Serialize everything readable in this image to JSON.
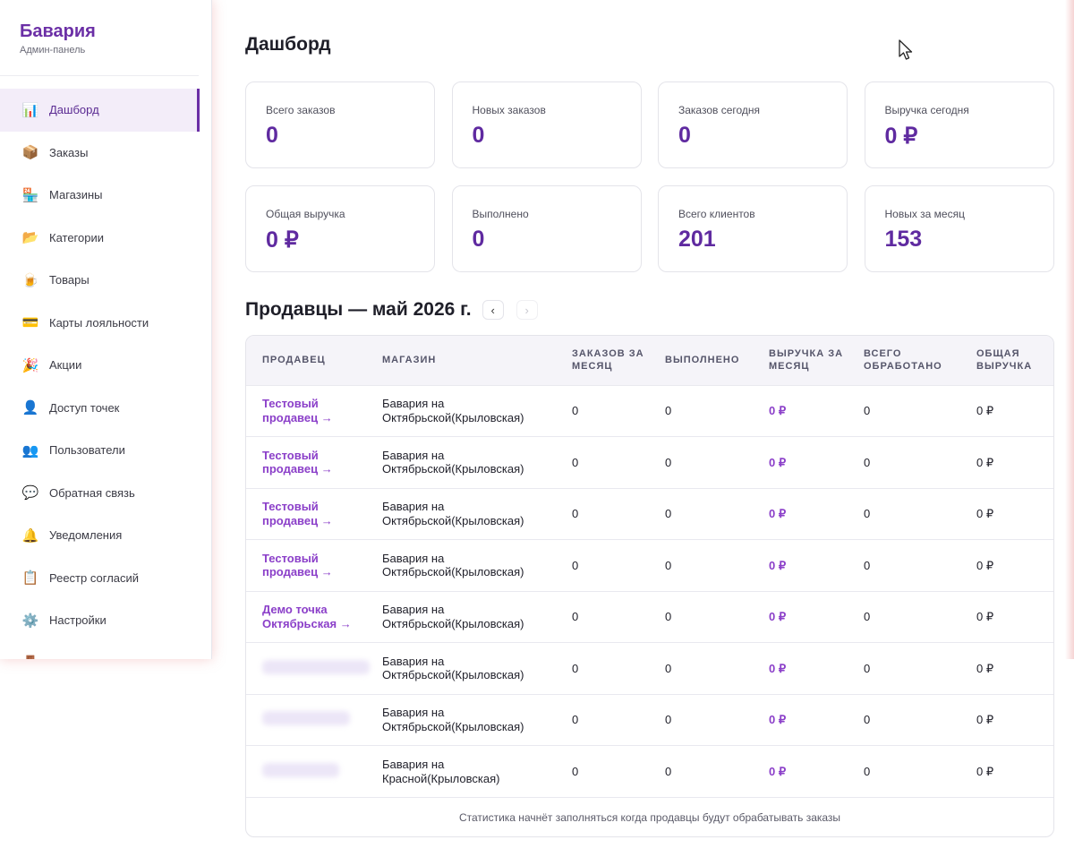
{
  "brand": {
    "title": "Бавария",
    "subtitle": "Админ-панель"
  },
  "sidebar": {
    "items": [
      {
        "label": "Дашборд",
        "icon": "📊",
        "icon_name": "chart-icon",
        "active": true
      },
      {
        "label": "Заказы",
        "icon": "📦",
        "icon_name": "package-icon"
      },
      {
        "label": "Магазины",
        "icon": "🏪",
        "icon_name": "store-icon"
      },
      {
        "label": "Категории",
        "icon": "📂",
        "icon_name": "folder-icon"
      },
      {
        "label": "Товары",
        "icon": "🍺",
        "icon_name": "beer-icon"
      },
      {
        "label": "Карты лояльности",
        "icon": "💳",
        "icon_name": "card-icon"
      },
      {
        "label": "Акции",
        "icon": "🎉",
        "icon_name": "party-icon"
      },
      {
        "label": "Доступ точек",
        "icon": "👤",
        "icon_name": "user-icon"
      },
      {
        "label": "Пользователи",
        "icon": "👥",
        "icon_name": "users-icon"
      },
      {
        "label": "Обратная связь",
        "icon": "💬",
        "icon_name": "chat-icon"
      },
      {
        "label": "Уведомления",
        "icon": "🔔",
        "icon_name": "bell-icon"
      },
      {
        "label": "Реестр согласий",
        "icon": "📋",
        "icon_name": "clipboard-icon"
      },
      {
        "label": "Настройки",
        "icon": "⚙️",
        "icon_name": "gear-icon"
      },
      {
        "label": "",
        "icon": "🚪",
        "icon_name": "door-icon"
      }
    ]
  },
  "page": {
    "title": "Дашборд"
  },
  "stats": [
    {
      "label": "Всего заказов",
      "value": "0"
    },
    {
      "label": "Новых заказов",
      "value": "0"
    },
    {
      "label": "Заказов сегодня",
      "value": "0"
    },
    {
      "label": "Выручка сегодня",
      "value": "0 ₽"
    },
    {
      "label": "Общая выручка",
      "value": "0 ₽"
    },
    {
      "label": "Выполнено",
      "value": "0"
    },
    {
      "label": "Всего клиентов",
      "value": "201"
    },
    {
      "label": "Новых за месяц",
      "value": "153"
    }
  ],
  "sellers": {
    "title": "Продавцы — май 2026 г.",
    "prev": "‹",
    "next": "›",
    "columns": [
      "Продавец",
      "Магазин",
      "Заказов за месяц",
      "Выполнено",
      "Выручка за месяц",
      "Всего обработано",
      "Общая выручка"
    ],
    "rows": [
      {
        "seller": "Тестовый продавец →",
        "store": "Бавария на Октябрьской(Крыловская)",
        "orders": "0",
        "done": "0",
        "revenue_month": "0 ₽",
        "processed": "0",
        "revenue_total": "0 ₽"
      },
      {
        "seller": "Тестовый продавец →",
        "store": "Бавария на Октябрьской(Крыловская)",
        "orders": "0",
        "done": "0",
        "revenue_month": "0 ₽",
        "processed": "0",
        "revenue_total": "0 ₽"
      },
      {
        "seller": "Тестовый продавец →",
        "store": "Бавария на Октябрьской(Крыловская)",
        "orders": "0",
        "done": "0",
        "revenue_month": "0 ₽",
        "processed": "0",
        "revenue_total": "0 ₽"
      },
      {
        "seller": "Тестовый продавец →",
        "store": "Бавария на Октябрьской(Крыловская)",
        "orders": "0",
        "done": "0",
        "revenue_month": "0 ₽",
        "processed": "0",
        "revenue_total": "0 ₽"
      },
      {
        "seller": "Демо точка Октябрьская →",
        "store": "Бавария на Октябрьской(Крыловская)",
        "orders": "0",
        "done": "0",
        "revenue_month": "0 ₽",
        "processed": "0",
        "revenue_total": "0 ₽"
      },
      {
        "seller": "",
        "store": "Бавария на Октябрьской(Крыловская)",
        "orders": "0",
        "done": "0",
        "revenue_month": "0 ₽",
        "processed": "0",
        "revenue_total": "0 ₽"
      },
      {
        "seller": "",
        "store": "Бавария на Октябрьской(Крыловская)",
        "orders": "0",
        "done": "0",
        "revenue_month": "0 ₽",
        "processed": "0",
        "revenue_total": "0 ₽"
      },
      {
        "seller": "",
        "store": "Бавария на Красной(Крыловская)",
        "orders": "0",
        "done": "0",
        "revenue_month": "0 ₽",
        "processed": "0",
        "revenue_total": "0 ₽"
      }
    ],
    "footer": "Статистика начнёт заполняться когда продавцы будут обрабатывать заказы"
  }
}
